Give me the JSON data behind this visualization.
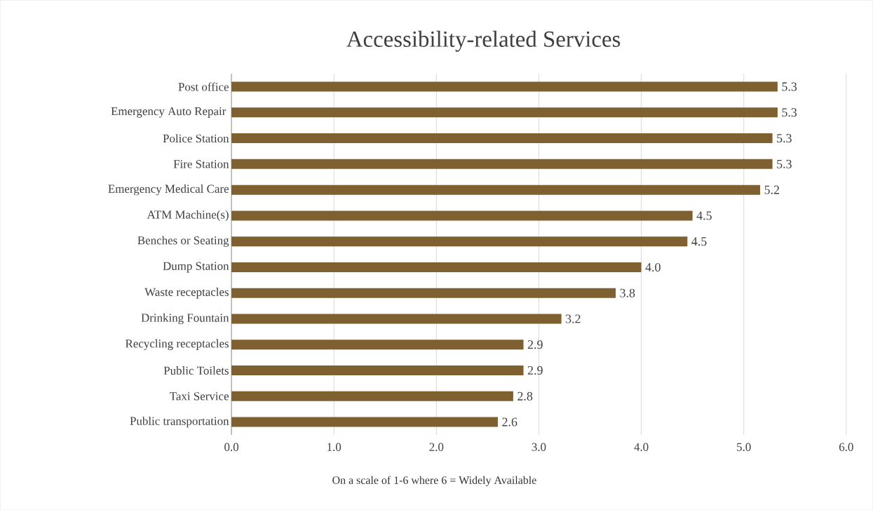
{
  "chart_data": {
    "type": "bar",
    "orientation": "horizontal",
    "title": "Accessibility-related Services",
    "xlabel": "On a scale of 1-6 where 6 = Widely Available",
    "categories": [
      "Post office",
      "Emergency Auto Repair ",
      "Police Station",
      "Fire Station",
      "Emergency Medical Care",
      "ATM Machine(s)",
      "Benches or Seating",
      "Dump Station",
      "Waste receptacles",
      "Drinking Fountain",
      "Recycling receptacles",
      "Public Toilets",
      "Taxi Service",
      "Public transportation"
    ],
    "values": [
      5.33,
      5.33,
      5.28,
      5.28,
      5.16,
      4.5,
      4.45,
      4.0,
      3.75,
      3.22,
      2.85,
      2.85,
      2.75,
      2.6
    ],
    "value_labels": [
      "5.3",
      "5.3",
      "5.3",
      "5.3",
      "5.2",
      "4.5",
      "4.5",
      "4.0",
      "3.8",
      "3.2",
      "2.9",
      "2.9",
      "2.8",
      "2.6"
    ],
    "color": "#7f6030",
    "xlim": [
      0,
      6
    ],
    "xticks": [
      {
        "value": 0,
        "label": "0.0"
      },
      {
        "value": 1,
        "label": "1.0"
      },
      {
        "value": 2,
        "label": "2.0"
      },
      {
        "value": 3,
        "label": "3.0"
      },
      {
        "value": 4,
        "label": "4.0"
      },
      {
        "value": 5,
        "label": "5.0"
      },
      {
        "value": 6,
        "label": "6.0"
      }
    ],
    "grid": "x"
  }
}
